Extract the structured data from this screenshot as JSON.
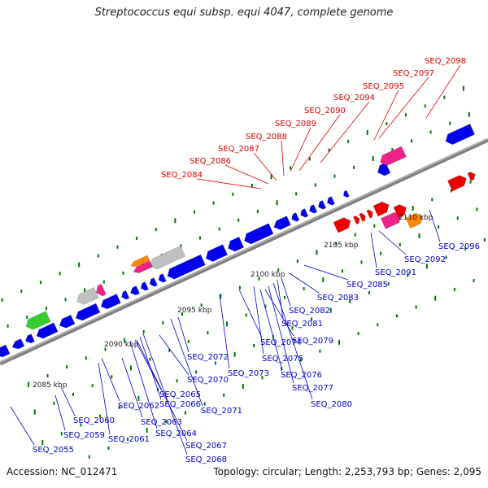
{
  "title": "Streptococcus equi subsp. equi 4047, complete genome",
  "footer": {
    "accession": "Accession: NC_012471",
    "summary": "Topology: circular; Length: 2,253,793 bp; Genes: 2,095"
  },
  "colors": {
    "backbone": "#808080",
    "forward_label": "#dd0000",
    "reverse_label": "#0000cc",
    "tick": "#007700"
  },
  "kbp_labels": [
    "2085 kbp",
    "2090 kbp",
    "2095 kbp",
    "2100 kbp",
    "2105 kbp",
    "2110 kbp"
  ],
  "forward_labels": [
    "SEQ_2084",
    "SEQ_2086",
    "SEQ_2087",
    "SEQ_2088",
    "SEQ_2089",
    "SEQ_2090",
    "SEQ_2094",
    "SEQ_2095",
    "SEQ_2097",
    "SEQ_2098"
  ],
  "reverse_labels": [
    "SEQ_2055",
    "SEQ_2059",
    "SEQ_2060",
    "SEQ_2061",
    "SEQ_2062",
    "SEQ_2063",
    "SEQ_2064",
    "SEQ_2065",
    "SEQ_2066",
    "SEQ_2067",
    "SEQ_2068",
    "SEQ_2070",
    "SEQ_2071",
    "SEQ_2072",
    "SEQ_2073",
    "SEQ_2074",
    "SEQ_2075",
    "SEQ_2076",
    "SEQ_2077",
    "SEQ_2079",
    "SEQ_2080",
    "SEQ_2081",
    "SEQ_2082",
    "SEQ_2083",
    "SEQ_2085",
    "SEQ_2091",
    "SEQ_2092",
    "SEQ_2096"
  ]
}
